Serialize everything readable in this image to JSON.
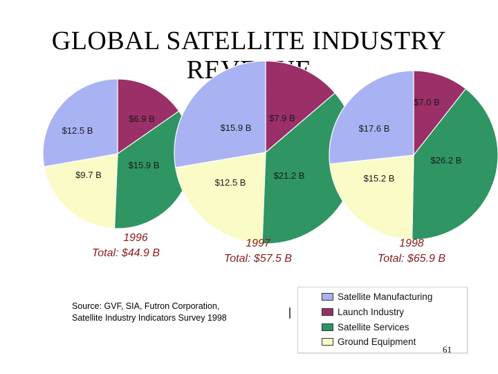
{
  "title": "GLOBAL SATELLITE INDUSTRY REVENUE",
  "source_line1": "Source: GVF, SIA, Futron Corporation,",
  "source_line2": "Satellite Industry Indicators Survey 1998",
  "page_number": "61",
  "colors": {
    "Satellite Manufacturing": "#a9b3f3",
    "Launch Industry": "#9b2f67",
    "Satellite Services": "#2f9563",
    "Ground Equipment": "#fbfbc7"
  },
  "chart_data": {
    "type": "pie",
    "legend": [
      "Satellite Manufacturing",
      "Launch Industry",
      "Satellite Services",
      "Ground Equipment"
    ],
    "legend_placement": "bottom-right",
    "charts": [
      {
        "year": "1996",
        "total_label": "Total: $44.9 B",
        "slices": [
          {
            "category": "Satellite Manufacturing",
            "value": 12.5,
            "label": "$12.5 B"
          },
          {
            "category": "Launch Industry",
            "value": 6.9,
            "label": "$6.9 B"
          },
          {
            "category": "Satellite Services",
            "value": 15.9,
            "label": "$15.9 B"
          },
          {
            "category": "Ground Equipment",
            "value": 9.7,
            "label": "$9.7 B"
          }
        ]
      },
      {
        "year": "1997",
        "total_label": "Total: $57.5 B",
        "slices": [
          {
            "category": "Satellite Manufacturing",
            "value": 15.9,
            "label": "$15.9 B"
          },
          {
            "category": "Launch Industry",
            "value": 7.9,
            "label": "$7.9 B"
          },
          {
            "category": "Satellite Services",
            "value": 21.2,
            "label": "$21.2 B"
          },
          {
            "category": "Ground Equipment",
            "value": 12.5,
            "label": "$12.5 B"
          }
        ]
      },
      {
        "year": "1998",
        "total_label": "Total: $65.9 B",
        "slices": [
          {
            "category": "Satellite Manufacturing",
            "value": 17.6,
            "label": "$17.6 B"
          },
          {
            "category": "Launch Industry",
            "value": 7.0,
            "label": "$7.0 B"
          },
          {
            "category": "Satellite Services",
            "value": 26.2,
            "label": "$26.2 B"
          },
          {
            "category": "Ground Equipment",
            "value": 15.2,
            "label": "$15.2 B"
          }
        ]
      }
    ]
  }
}
